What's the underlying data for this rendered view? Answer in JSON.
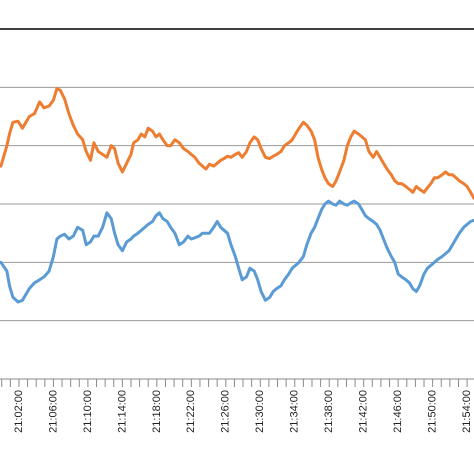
{
  "chart_data": {
    "type": "line",
    "grid": true,
    "legend": "none",
    "x_tick_labels": [
      "21:02:00",
      "21:06:00",
      "21:10:00",
      "21:14:00",
      "21:18:00",
      "21:22:00",
      "21:26:00",
      "21:30:00",
      "21:34:00",
      "21:38:00",
      "21:42:00",
      "21:46:00",
      "21:50:00",
      "21:54:00"
    ],
    "x_tick_minutes": [
      62,
      66,
      70,
      74,
      78,
      82,
      86,
      90,
      94,
      98,
      102,
      106,
      110,
      114
    ],
    "xlim_minutes": [
      59.8,
      114.8
    ],
    "ylim": [
      0,
      6
    ],
    "gridlines": [
      1,
      2,
      3,
      4,
      5
    ],
    "series": [
      {
        "color": "#ED7D31",
        "x_minutes": [
          59.9,
          60.6,
          60.9,
          61.3,
          61.9,
          62.4,
          62.8,
          63.2,
          63.8,
          64.4,
          64.9,
          65.5,
          66.0,
          66.4,
          66.8,
          67.3,
          67.8,
          68.3,
          68.8,
          69.4,
          69.8,
          70.3,
          70.7,
          71.2,
          71.7,
          72.2,
          72.7,
          73.1,
          73.5,
          74.0,
          74.5,
          75.0,
          75.3,
          75.8,
          76.2,
          76.6,
          77.0,
          77.5,
          77.9,
          78.3,
          78.7,
          79.2,
          79.6,
          80.1,
          80.6,
          81.1,
          81.6,
          82.0,
          82.4,
          82.9,
          83.3,
          83.7,
          84.1,
          84.6,
          85.0,
          85.4,
          85.8,
          86.2,
          86.6,
          87.1,
          87.5,
          87.9,
          88.4,
          88.8,
          89.3,
          89.7,
          90.1,
          90.6,
          91.1,
          91.5,
          91.9,
          92.4,
          92.8,
          93.3,
          93.7,
          94.1,
          94.5,
          95.0,
          95.4,
          95.9,
          96.3,
          96.7,
          97.1,
          97.5,
          97.9,
          98.4,
          98.8,
          99.2,
          99.7,
          100.1,
          100.5,
          100.9,
          101.4,
          101.8,
          102.2,
          102.6,
          103.1,
          103.5,
          103.9,
          104.3,
          104.7,
          105.2,
          105.6,
          106.0,
          106.4,
          106.9,
          107.3,
          107.7,
          108.1,
          108.5,
          109.0,
          109.4,
          109.8,
          110.2,
          110.6,
          111.1,
          111.5,
          111.9,
          112.3,
          112.7,
          113.1,
          113.6,
          114.0,
          114.4,
          114.8
        ],
        "y": [
          3.65,
          4.0,
          4.2,
          4.4,
          4.42,
          4.3,
          4.4,
          4.5,
          4.55,
          4.75,
          4.65,
          4.68,
          4.78,
          4.98,
          4.95,
          4.8,
          4.55,
          4.35,
          4.2,
          4.1,
          3.9,
          3.75,
          4.05,
          3.9,
          3.85,
          3.8,
          4.0,
          3.95,
          3.7,
          3.55,
          3.7,
          3.85,
          4.05,
          4.1,
          4.2,
          4.15,
          4.3,
          4.25,
          4.15,
          4.2,
          4.1,
          4.0,
          4.0,
          4.1,
          4.05,
          3.95,
          3.9,
          3.85,
          3.8,
          3.7,
          3.65,
          3.6,
          3.68,
          3.65,
          3.7,
          3.75,
          3.78,
          3.82,
          3.8,
          3.85,
          3.88,
          3.8,
          3.9,
          4.05,
          4.15,
          4.1,
          3.95,
          3.8,
          3.78,
          3.82,
          3.85,
          3.9,
          4.0,
          4.05,
          4.1,
          4.2,
          4.3,
          4.4,
          4.35,
          4.25,
          4.1,
          3.8,
          3.6,
          3.45,
          3.35,
          3.3,
          3.4,
          3.55,
          3.75,
          4.0,
          4.15,
          4.25,
          4.2,
          4.15,
          4.1,
          3.9,
          3.8,
          3.9,
          3.8,
          3.7,
          3.6,
          3.5,
          3.4,
          3.35,
          3.35,
          3.3,
          3.25,
          3.2,
          3.3,
          3.25,
          3.2,
          3.28,
          3.35,
          3.45,
          3.45,
          3.5,
          3.55,
          3.5,
          3.5,
          3.45,
          3.4,
          3.35,
          3.3,
          3.2,
          3.1
        ]
      },
      {
        "color": "#5B9BD5",
        "x_minutes": [
          59.9,
          60.6,
          60.9,
          61.3,
          61.9,
          62.4,
          62.8,
          63.2,
          63.8,
          64.4,
          64.9,
          65.5,
          66.0,
          66.4,
          66.8,
          67.3,
          67.8,
          68.3,
          68.8,
          69.4,
          69.8,
          70.3,
          70.7,
          71.2,
          71.7,
          72.2,
          72.7,
          73.1,
          73.5,
          74.0,
          74.5,
          75.0,
          75.3,
          75.8,
          76.2,
          76.6,
          77.0,
          77.5,
          77.9,
          78.3,
          78.7,
          79.2,
          79.6,
          80.1,
          80.6,
          81.1,
          81.6,
          82.0,
          82.4,
          82.9,
          83.3,
          83.7,
          84.1,
          84.6,
          85.0,
          85.4,
          85.8,
          86.2,
          86.6,
          87.1,
          87.5,
          87.9,
          88.4,
          88.8,
          89.3,
          89.7,
          90.1,
          90.6,
          91.1,
          91.5,
          91.9,
          92.4,
          92.8,
          93.3,
          93.7,
          94.1,
          94.5,
          95.0,
          95.4,
          95.9,
          96.3,
          96.7,
          97.1,
          97.5,
          97.9,
          98.4,
          98.8,
          99.2,
          99.7,
          100.1,
          100.5,
          100.9,
          101.4,
          101.8,
          102.2,
          102.6,
          103.1,
          103.5,
          103.9,
          104.3,
          104.7,
          105.2,
          105.6,
          106.0,
          106.4,
          106.9,
          107.3,
          107.7,
          108.1,
          108.5,
          109.0,
          109.4,
          109.8,
          110.2,
          110.6,
          111.1,
          111.5,
          111.9,
          112.3,
          112.7,
          113.1,
          113.6,
          114.0,
          114.4,
          114.8
        ],
        "y": [
          2.0,
          1.85,
          1.6,
          1.4,
          1.32,
          1.35,
          1.45,
          1.55,
          1.65,
          1.7,
          1.75,
          1.85,
          2.1,
          2.4,
          2.45,
          2.48,
          2.4,
          2.45,
          2.6,
          2.55,
          2.3,
          2.35,
          2.45,
          2.45,
          2.6,
          2.85,
          2.75,
          2.5,
          2.3,
          2.2,
          2.35,
          2.4,
          2.45,
          2.5,
          2.55,
          2.6,
          2.65,
          2.7,
          2.8,
          2.85,
          2.75,
          2.7,
          2.6,
          2.5,
          2.3,
          2.35,
          2.45,
          2.4,
          2.42,
          2.45,
          2.5,
          2.5,
          2.5,
          2.6,
          2.7,
          2.6,
          2.55,
          2.5,
          2.3,
          2.1,
          1.9,
          1.7,
          1.75,
          1.9,
          1.85,
          1.7,
          1.5,
          1.35,
          1.4,
          1.5,
          1.55,
          1.6,
          1.7,
          1.8,
          1.9,
          1.95,
          2.0,
          2.1,
          2.3,
          2.5,
          2.6,
          2.75,
          2.9,
          3.0,
          3.05,
          3.0,
          2.98,
          3.05,
          3.0,
          2.98,
          3.02,
          3.05,
          3.0,
          2.9,
          2.8,
          2.75,
          2.7,
          2.65,
          2.55,
          2.4,
          2.25,
          2.1,
          2.0,
          1.8,
          1.75,
          1.7,
          1.65,
          1.55,
          1.5,
          1.6,
          1.8,
          1.9,
          1.95,
          2.0,
          2.05,
          2.1,
          2.15,
          2.2,
          2.3,
          2.4,
          2.5,
          2.6,
          2.65,
          2.7,
          2.72
        ]
      }
    ]
  }
}
